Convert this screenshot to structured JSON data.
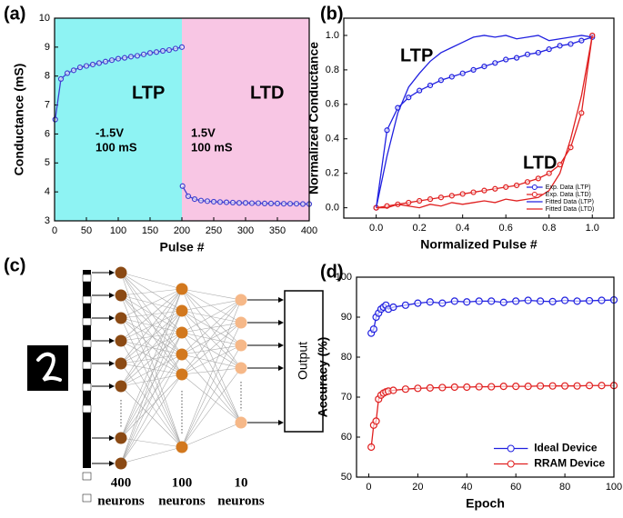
{
  "chart_data": [
    {
      "type": "line",
      "title": "(a)",
      "xlabel": "Pulse #",
      "ylabel": "Conductance (mS)",
      "xlim": [
        0,
        400
      ],
      "xticks": [
        0,
        50,
        100,
        150,
        200,
        250,
        300,
        350,
        400
      ],
      "ylim": [
        3,
        10
      ],
      "yticks": [
        3,
        4,
        5,
        6,
        7,
        8,
        9,
        10
      ],
      "background_regions": [
        {
          "x": [
            0,
            200
          ],
          "color": "#8ef3f3"
        },
        {
          "x": [
            200,
            400
          ],
          "color": "#f8c6e4"
        }
      ],
      "annotations": [
        {
          "text": "LTP",
          "color": "#2f8fe6"
        },
        {
          "text": "LTD",
          "color": "#e8409c"
        },
        {
          "text": "-1.5V",
          "color": "#2f8fe6"
        },
        {
          "text": "100 mS",
          "color": "#2f8fe6"
        },
        {
          "text": "1.5V",
          "color": "#e8409c"
        },
        {
          "text": "100 mS",
          "color": "#e8409c"
        }
      ],
      "series": [
        {
          "color": "#4040d0",
          "marker": true,
          "line": true,
          "x": [
            1,
            10,
            20,
            30,
            40,
            50,
            60,
            70,
            80,
            90,
            100,
            110,
            120,
            130,
            140,
            150,
            160,
            170,
            180,
            190,
            200
          ],
          "values": [
            6.5,
            7.9,
            8.1,
            8.2,
            8.3,
            8.35,
            8.4,
            8.45,
            8.5,
            8.55,
            8.6,
            8.63,
            8.67,
            8.7,
            8.75,
            8.8,
            8.83,
            8.87,
            8.9,
            8.95,
            9.0
          ]
        },
        {
          "color": "#4040d0",
          "marker": true,
          "line": true,
          "x": [
            201,
            210,
            220,
            230,
            240,
            250,
            260,
            270,
            280,
            290,
            300,
            310,
            320,
            330,
            340,
            350,
            360,
            370,
            380,
            390,
            400
          ],
          "values": [
            4.2,
            3.85,
            3.75,
            3.7,
            3.68,
            3.66,
            3.65,
            3.64,
            3.63,
            3.62,
            3.62,
            3.61,
            3.61,
            3.6,
            3.6,
            3.6,
            3.59,
            3.59,
            3.59,
            3.58,
            3.58
          ]
        }
      ]
    },
    {
      "type": "line",
      "title": "(b)",
      "xlabel": "Normalized Pulse #",
      "ylabel": "Normalized Conductance",
      "xlim": [
        -0.15,
        1.1
      ],
      "xticks": [
        {
          "value": 0,
          "label": "0.0"
        },
        0.2,
        0.4,
        0.6,
        0.8,
        {
          "value": 1,
          "label": "1.0"
        }
      ],
      "ylim": [
        -0.06,
        1.1
      ],
      "yticks": [
        {
          "value": 0,
          "label": "0.0"
        },
        0.2,
        0.4,
        0.6,
        0.8,
        {
          "value": 1,
          "label": "1.0"
        }
      ],
      "legend": "lower right",
      "annotations": [
        {
          "text": "LTP",
          "color": "#1f1fe0"
        },
        {
          "text": "LTD",
          "color": "#e82020"
        }
      ],
      "series": [
        {
          "name": "Exp. Data (LTP)",
          "color": "#2020e0",
          "marker": true,
          "line": true,
          "x": [
            0,
            0.05,
            0.1,
            0.15,
            0.2,
            0.25,
            0.3,
            0.35,
            0.4,
            0.45,
            0.5,
            0.55,
            0.6,
            0.65,
            0.7,
            0.75,
            0.8,
            0.85,
            0.9,
            0.95,
            1
          ],
          "values": [
            0,
            0.45,
            0.58,
            0.64,
            0.68,
            0.71,
            0.74,
            0.76,
            0.78,
            0.8,
            0.82,
            0.84,
            0.86,
            0.87,
            0.89,
            0.9,
            0.92,
            0.94,
            0.95,
            0.97,
            0.99
          ]
        },
        {
          "name": "Exp. Data (LTD)",
          "color": "#e02020",
          "marker": true,
          "line": true,
          "x": [
            0,
            0.05,
            0.1,
            0.15,
            0.2,
            0.25,
            0.3,
            0.35,
            0.4,
            0.45,
            0.5,
            0.55,
            0.6,
            0.65,
            0.7,
            0.75,
            0.8,
            0.85,
            0.9,
            0.95,
            1
          ],
          "values": [
            0,
            0.01,
            0.02,
            0.03,
            0.04,
            0.05,
            0.06,
            0.07,
            0.08,
            0.09,
            0.1,
            0.11,
            0.12,
            0.13,
            0.15,
            0.17,
            0.2,
            0.25,
            0.35,
            0.55,
            1.0
          ]
        },
        {
          "name": "Fitted Data (LTP)",
          "color": "#2020e0",
          "marker": false,
          "line": true,
          "x": [
            0,
            0.05,
            0.1,
            0.15,
            0.2,
            0.25,
            0.3,
            0.35,
            0.4,
            0.45,
            0.5,
            0.55,
            0.6,
            0.65,
            0.7,
            0.75,
            0.8,
            0.85,
            0.9,
            0.95,
            1
          ],
          "values": [
            0,
            0.3,
            0.55,
            0.7,
            0.78,
            0.85,
            0.9,
            0.93,
            0.96,
            0.99,
            1.0,
            0.99,
            1.0,
            0.98,
            0.99,
            1.0,
            0.97,
            0.98,
            0.99,
            1.0,
            0.99
          ]
        },
        {
          "name": "Fitted Data (LTD)",
          "color": "#e02020",
          "marker": false,
          "line": true,
          "x": [
            0,
            0.05,
            0.1,
            0.15,
            0.2,
            0.25,
            0.3,
            0.35,
            0.4,
            0.45,
            0.5,
            0.55,
            0.6,
            0.65,
            0.7,
            0.75,
            0.8,
            0.85,
            0.9,
            0.95,
            1
          ],
          "values": [
            0,
            0.0,
            0.02,
            0.01,
            0.0,
            0.02,
            0.01,
            0.03,
            0.02,
            0.03,
            0.04,
            0.03,
            0.05,
            0.04,
            0.05,
            0.06,
            0.1,
            0.2,
            0.4,
            0.65,
            1.0
          ]
        }
      ]
    },
    {
      "type": "line",
      "title": "(d)",
      "xlabel": "Epoch",
      "ylabel": "Accuracy (%)",
      "xlim": [
        -5,
        100
      ],
      "xticks": [
        0,
        20,
        40,
        60,
        80,
        100
      ],
      "ylim": [
        50,
        100
      ],
      "yticks": [
        50,
        60,
        70,
        80,
        90,
        100
      ],
      "legend": "lower right",
      "series": [
        {
          "name": "Ideal Device",
          "color": "#2020e0",
          "marker": true,
          "line": true,
          "x": [
            1,
            2,
            3,
            4,
            5,
            6,
            7,
            8,
            10,
            15,
            20,
            25,
            30,
            35,
            40,
            45,
            50,
            55,
            60,
            65,
            70,
            75,
            80,
            85,
            90,
            95,
            100
          ],
          "values": [
            86,
            87,
            90,
            91,
            92,
            92.5,
            93,
            92,
            92.5,
            93,
            93.5,
            93.8,
            93.5,
            94,
            93.8,
            94,
            94,
            93.7,
            94,
            94.2,
            94,
            93.9,
            94.2,
            94,
            94.1,
            94.2,
            94.3
          ]
        },
        {
          "name": "RRAM Device",
          "color": "#e02020",
          "marker": true,
          "line": true,
          "x": [
            1,
            2,
            3,
            4,
            5,
            6,
            7,
            8,
            10,
            15,
            20,
            25,
            30,
            35,
            40,
            45,
            50,
            55,
            60,
            65,
            70,
            75,
            80,
            85,
            90,
            95,
            100
          ],
          "values": [
            57.5,
            63,
            64,
            69.5,
            70.5,
            71,
            71.3,
            71.5,
            71.7,
            72,
            72.2,
            72.3,
            72.4,
            72.5,
            72.5,
            72.6,
            72.6,
            72.7,
            72.7,
            72.7,
            72.8,
            72.8,
            72.8,
            72.8,
            72.9,
            72.9,
            72.9
          ]
        }
      ]
    }
  ],
  "diagram": {
    "title": "(c)",
    "output": "Output",
    "layers": [
      {
        "count": "400",
        "label": "neurons"
      },
      {
        "count": "100",
        "label": "neurons"
      },
      {
        "count": "10",
        "label": "neurons"
      }
    ]
  }
}
